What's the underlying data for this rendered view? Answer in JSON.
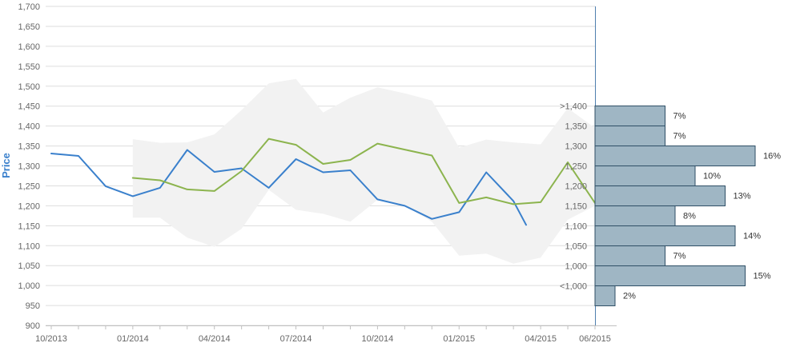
{
  "chart_data": {
    "type": "line",
    "ylabel": "Price",
    "ylim": [
      900,
      1700
    ],
    "y_ticks": [
      900,
      950,
      1000,
      1050,
      1100,
      1150,
      1200,
      1250,
      1300,
      1350,
      1400,
      1450,
      1500,
      1550,
      1600,
      1650,
      1700
    ],
    "x_ticks": [
      "10/2013",
      "01/2014",
      "04/2014",
      "07/2014",
      "10/2014",
      "01/2015",
      "04/2015",
      "06/2015"
    ],
    "x_range": [
      "2013-10",
      "2015-06"
    ],
    "grid": true,
    "colors": {
      "blue": "#3a80cc",
      "green": "#8cb44e",
      "band": "#f2f2f2",
      "hist_fill": "#9fb6c4",
      "hist_stroke": "#2f4f66",
      "label": "#3a80cc"
    },
    "series": [
      {
        "color": "blue",
        "x": [
          "2013-10",
          "2013-11",
          "2013-12",
          "2014-01",
          "2014-02",
          "2014-03",
          "2014-04",
          "2014-05",
          "2014-06",
          "2014-07",
          "2014-08",
          "2014-09",
          "2014-10",
          "2014-11",
          "2014-12",
          "2015-01",
          "2015-02",
          "2015-03",
          "2015-03-15"
        ],
        "values": [
          1331,
          1325,
          1249,
          1224,
          1245,
          1340,
          1285,
          1294,
          1245,
          1317,
          1284,
          1289,
          1216,
          1200,
          1167,
          1184,
          1284,
          1212,
          1152
        ]
      },
      {
        "color": "green",
        "x": [
          "2014-01",
          "2014-02",
          "2014-03",
          "2014-04",
          "2014-05",
          "2014-06",
          "2014-07",
          "2014-08",
          "2014-09",
          "2014-10",
          "2014-11",
          "2014-12",
          "2015-01",
          "2015-02",
          "2015-03",
          "2015-04",
          "2015-05",
          "2015-06"
        ],
        "values": [
          1270,
          1264,
          1241,
          1237,
          1287,
          1368,
          1353,
          1305,
          1315,
          1356,
          1341,
          1326,
          1207,
          1221,
          1204,
          1209,
          1309,
          1207
        ]
      }
    ],
    "band": {
      "color": "band",
      "x": [
        "2014-01",
        "2014-02",
        "2014-03",
        "2014-04",
        "2014-05",
        "2014-06",
        "2014-07",
        "2014-08",
        "2014-09",
        "2014-10",
        "2014-11",
        "2014-12",
        "2015-01",
        "2015-02",
        "2015-03",
        "2015-04",
        "2015-05",
        "2015-06"
      ],
      "upper": [
        1367,
        1358,
        1359,
        1379,
        1440,
        1507,
        1518,
        1434,
        1471,
        1497,
        1482,
        1464,
        1346,
        1366,
        1359,
        1354,
        1445,
        1395
      ],
      "lower": [
        1170,
        1170,
        1120,
        1097,
        1142,
        1240,
        1190,
        1180,
        1160,
        1215,
        1200,
        1160,
        1075,
        1080,
        1055,
        1070,
        1165,
        1200
      ]
    },
    "histogram": {
      "bins": [
        "<1,000",
        "1,000",
        "1,050",
        "1,100",
        "1,150",
        "1,200",
        "1,250",
        "1,300",
        "1,350",
        ">1,400"
      ],
      "labels": [
        "2%",
        "15%",
        "7%",
        "14%",
        "8%",
        "13%",
        "10%",
        "16%",
        "7%",
        "7%"
      ],
      "values": [
        2,
        15,
        7,
        14,
        8,
        13,
        10,
        16,
        7,
        7
      ]
    }
  }
}
